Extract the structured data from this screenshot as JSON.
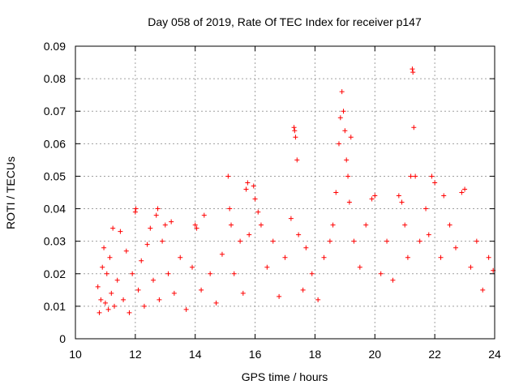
{
  "chart_data": {
    "type": "scatter",
    "title": "Day 058 of 2019, Rate Of TEC Index for receiver p147",
    "xlabel": "GPS time / hours",
    "ylabel": "ROTI / TECUs",
    "xlim": [
      10,
      24
    ],
    "ylim": [
      0,
      0.09
    ],
    "x_ticks": [
      "10",
      "12",
      "14",
      "16",
      "18",
      "20",
      "22",
      "24"
    ],
    "y_ticks": [
      "0",
      "0.01",
      "0.02",
      "0.03",
      "0.04",
      "0.05",
      "0.06",
      "0.07",
      "0.08",
      "0.09"
    ],
    "grid": true,
    "marker": "plus",
    "color": "#ff0000",
    "series": [
      {
        "name": "ROTI",
        "points": [
          [
            10.75,
            0.016
          ],
          [
            10.8,
            0.008
          ],
          [
            10.85,
            0.012
          ],
          [
            10.9,
            0.022
          ],
          [
            10.95,
            0.028
          ],
          [
            11.0,
            0.011
          ],
          [
            11.05,
            0.02
          ],
          [
            11.1,
            0.009
          ],
          [
            11.15,
            0.025
          ],
          [
            11.2,
            0.014
          ],
          [
            11.25,
            0.034
          ],
          [
            11.3,
            0.01
          ],
          [
            11.4,
            0.018
          ],
          [
            11.5,
            0.033
          ],
          [
            11.6,
            0.012
          ],
          [
            11.7,
            0.027
          ],
          [
            11.8,
            0.008
          ],
          [
            11.9,
            0.02
          ],
          [
            12.0,
            0.039
          ],
          [
            12.02,
            0.04
          ],
          [
            12.1,
            0.015
          ],
          [
            12.2,
            0.024
          ],
          [
            12.3,
            0.01
          ],
          [
            12.4,
            0.029
          ],
          [
            12.5,
            0.034
          ],
          [
            12.6,
            0.018
          ],
          [
            12.7,
            0.038
          ],
          [
            12.75,
            0.04
          ],
          [
            12.8,
            0.012
          ],
          [
            12.9,
            0.03
          ],
          [
            13.0,
            0.035
          ],
          [
            13.1,
            0.02
          ],
          [
            13.2,
            0.036
          ],
          [
            13.3,
            0.014
          ],
          [
            13.5,
            0.025
          ],
          [
            13.7,
            0.009
          ],
          [
            13.9,
            0.022
          ],
          [
            14.0,
            0.035
          ],
          [
            14.05,
            0.034
          ],
          [
            14.2,
            0.015
          ],
          [
            14.3,
            0.038
          ],
          [
            14.5,
            0.02
          ],
          [
            14.7,
            0.011
          ],
          [
            14.9,
            0.026
          ],
          [
            15.1,
            0.05
          ],
          [
            15.15,
            0.04
          ],
          [
            15.2,
            0.035
          ],
          [
            15.3,
            0.02
          ],
          [
            15.5,
            0.03
          ],
          [
            15.6,
            0.014
          ],
          [
            15.7,
            0.046
          ],
          [
            15.75,
            0.048
          ],
          [
            15.8,
            0.032
          ],
          [
            15.95,
            0.047
          ],
          [
            16.0,
            0.043
          ],
          [
            16.1,
            0.039
          ],
          [
            16.2,
            0.035
          ],
          [
            16.4,
            0.022
          ],
          [
            16.6,
            0.03
          ],
          [
            16.8,
            0.013
          ],
          [
            17.0,
            0.025
          ],
          [
            17.2,
            0.037
          ],
          [
            17.3,
            0.065
          ],
          [
            17.32,
            0.064
          ],
          [
            17.35,
            0.062
          ],
          [
            17.4,
            0.055
          ],
          [
            17.45,
            0.032
          ],
          [
            17.6,
            0.015
          ],
          [
            17.7,
            0.028
          ],
          [
            17.9,
            0.02
          ],
          [
            18.1,
            0.012
          ],
          [
            18.3,
            0.025
          ],
          [
            18.5,
            0.03
          ],
          [
            18.6,
            0.035
          ],
          [
            18.7,
            0.045
          ],
          [
            18.8,
            0.06
          ],
          [
            18.85,
            0.068
          ],
          [
            18.9,
            0.076
          ],
          [
            18.95,
            0.07
          ],
          [
            19.0,
            0.064
          ],
          [
            19.05,
            0.055
          ],
          [
            19.1,
            0.05
          ],
          [
            19.15,
            0.042
          ],
          [
            19.2,
            0.062
          ],
          [
            19.3,
            0.03
          ],
          [
            19.5,
            0.022
          ],
          [
            19.7,
            0.035
          ],
          [
            19.9,
            0.043
          ],
          [
            20.0,
            0.044
          ],
          [
            20.2,
            0.02
          ],
          [
            20.4,
            0.03
          ],
          [
            20.6,
            0.018
          ],
          [
            20.8,
            0.044
          ],
          [
            20.9,
            0.042
          ],
          [
            21.0,
            0.035
          ],
          [
            21.1,
            0.025
          ],
          [
            21.2,
            0.05
          ],
          [
            21.25,
            0.083
          ],
          [
            21.27,
            0.082
          ],
          [
            21.3,
            0.065
          ],
          [
            21.35,
            0.05
          ],
          [
            21.5,
            0.03
          ],
          [
            21.7,
            0.04
          ],
          [
            21.8,
            0.032
          ],
          [
            21.9,
            0.05
          ],
          [
            22.0,
            0.048
          ],
          [
            22.2,
            0.025
          ],
          [
            22.3,
            0.044
          ],
          [
            22.5,
            0.035
          ],
          [
            22.7,
            0.028
          ],
          [
            22.9,
            0.045
          ],
          [
            23.0,
            0.046
          ],
          [
            23.2,
            0.022
          ],
          [
            23.4,
            0.03
          ],
          [
            23.6,
            0.015
          ],
          [
            23.8,
            0.025
          ],
          [
            23.95,
            0.021
          ]
        ]
      }
    ]
  }
}
